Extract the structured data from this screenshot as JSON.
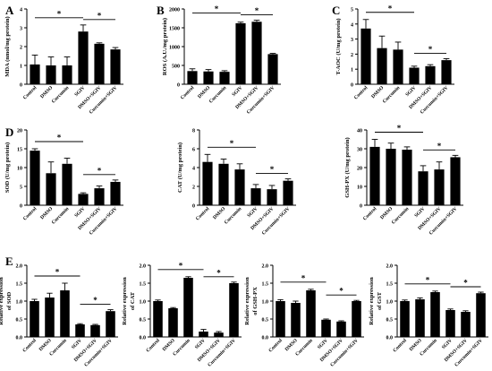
{
  "categories": [
    "Control",
    "DMSO",
    "Curcumin",
    "SGIV",
    "DMSO+SGIV",
    "Curcumin+SGIV"
  ],
  "colors": {
    "bar": "#000000",
    "axis": "#000000"
  },
  "chart_data": [
    {
      "panel": "A",
      "type": "bar",
      "ylabel": "MDA (nmol/mg protein)",
      "yticks": [
        0,
        1,
        2,
        3,
        4
      ],
      "ylim": [
        0,
        4
      ],
      "values": [
        1.05,
        1.0,
        1.0,
        2.8,
        2.15,
        1.85
      ],
      "errors": [
        0.5,
        0.45,
        0.45,
        0.35,
        0.05,
        0.1
      ],
      "sig": [
        [
          0,
          3,
          "*"
        ],
        [
          3,
          5,
          "*"
        ]
      ]
    },
    {
      "panel": "B",
      "type": "bar",
      "ylabel": "ROS (A.U./mg protein)",
      "yticks": [
        0,
        500,
        1000,
        1500,
        2000
      ],
      "ylim": [
        0,
        2000
      ],
      "values": [
        350,
        340,
        330,
        1620,
        1660,
        800
      ],
      "errors": [
        60,
        50,
        30,
        30,
        40,
        20
      ],
      "sig": [
        [
          0,
          3,
          "*"
        ],
        [
          3,
          5,
          "*"
        ]
      ]
    },
    {
      "panel": "C",
      "type": "bar",
      "ylabel": "T-AOC (U/mg protein)",
      "yticks": [
        0,
        1,
        2,
        3,
        4,
        5
      ],
      "ylim": [
        0,
        5
      ],
      "values": [
        3.7,
        2.4,
        2.3,
        1.1,
        1.2,
        1.6
      ],
      "errors": [
        0.6,
        0.8,
        0.5,
        0.1,
        0.1,
        0.1
      ],
      "sig": [
        [
          0,
          3,
          "*"
        ],
        [
          3,
          5,
          "*"
        ]
      ]
    },
    {
      "panel": "D",
      "type": "bar",
      "ylabel": "SOD (U/mg protein)",
      "yticks": [
        0,
        5,
        10,
        15,
        20
      ],
      "ylim": [
        0,
        20
      ],
      "values": [
        14.5,
        8.5,
        11.0,
        3.0,
        4.5,
        6.2
      ],
      "errors": [
        0.5,
        3.0,
        1.5,
        0.3,
        0.6,
        0.5
      ],
      "sig": [
        [
          0,
          3,
          "*"
        ],
        [
          3,
          5,
          "*"
        ]
      ]
    },
    {
      "panel": "",
      "type": "bar",
      "ylabel": "CAT (U/mg protein)",
      "yticks": [
        0,
        2,
        4,
        6,
        8
      ],
      "ylim": [
        0,
        8
      ],
      "values": [
        4.6,
        4.4,
        3.8,
        1.8,
        1.7,
        2.6
      ],
      "errors": [
        0.8,
        0.5,
        0.6,
        0.4,
        0.4,
        0.2
      ],
      "sig": [
        [
          0,
          3,
          "*"
        ],
        [
          3,
          5,
          "*"
        ]
      ]
    },
    {
      "panel": "",
      "type": "bar",
      "ylabel": "GSH-PX (U/mg protein)",
      "yticks": [
        0,
        10,
        20,
        30,
        40
      ],
      "ylim": [
        0,
        40
      ],
      "values": [
        31,
        30,
        29.5,
        18,
        19,
        25.5
      ],
      "errors": [
        4,
        3,
        1.5,
        3,
        4,
        1
      ],
      "sig": [
        [
          0,
          3,
          "*"
        ],
        [
          3,
          5,
          "*"
        ]
      ]
    },
    {
      "panel": "E",
      "type": "bar",
      "ylabel": "Relative expression of SOD",
      "yticks": [
        0.0,
        0.5,
        1.0,
        1.5,
        2.0
      ],
      "ylim": [
        0,
        2.0
      ],
      "values": [
        1.0,
        1.1,
        1.3,
        0.35,
        0.33,
        0.72
      ],
      "errors": [
        0.05,
        0.12,
        0.2,
        0.02,
        0.02,
        0.04
      ],
      "sig": [
        [
          0,
          3,
          "*"
        ],
        [
          3,
          5,
          "*"
        ]
      ]
    },
    {
      "panel": "",
      "type": "bar",
      "ylabel": "Relative expression of CAT",
      "yticks": [
        0.0,
        0.5,
        1.0,
        1.5,
        2.0
      ],
      "ylim": [
        0,
        2.0
      ],
      "values": [
        1.0,
        0.8,
        1.65,
        0.15,
        0.12,
        1.5
      ],
      "errors": [
        0.03,
        0.02,
        0.03,
        0.06,
        0.03,
        0.03
      ],
      "sig": [
        [
          0,
          3,
          "*"
        ],
        [
          3,
          5,
          "*"
        ]
      ]
    },
    {
      "panel": "",
      "type": "bar",
      "ylabel": "Relative expression of GSH-PX",
      "yticks": [
        0.0,
        0.5,
        1.0,
        1.5,
        2.0
      ],
      "ylim": [
        0,
        2.0
      ],
      "values": [
        1.0,
        0.95,
        1.3,
        0.48,
        0.43,
        1.0
      ],
      "errors": [
        0.04,
        0.05,
        0.03,
        0.02,
        0.02,
        0.02
      ],
      "sig": [
        [
          0,
          3,
          "*"
        ],
        [
          3,
          5,
          "*"
        ]
      ]
    },
    {
      "panel": "",
      "type": "bar",
      "ylabel": "Relative expression of GST",
      "yticks": [
        0.0,
        0.5,
        1.0,
        1.5,
        2.0
      ],
      "ylim": [
        0,
        2.0
      ],
      "values": [
        1.0,
        1.05,
        1.25,
        0.75,
        0.7,
        1.22
      ],
      "errors": [
        0.03,
        0.04,
        0.03,
        0.03,
        0.03,
        0.03
      ],
      "sig": [
        [
          0,
          3,
          "*"
        ],
        [
          3,
          5,
          "*"
        ]
      ]
    }
  ]
}
